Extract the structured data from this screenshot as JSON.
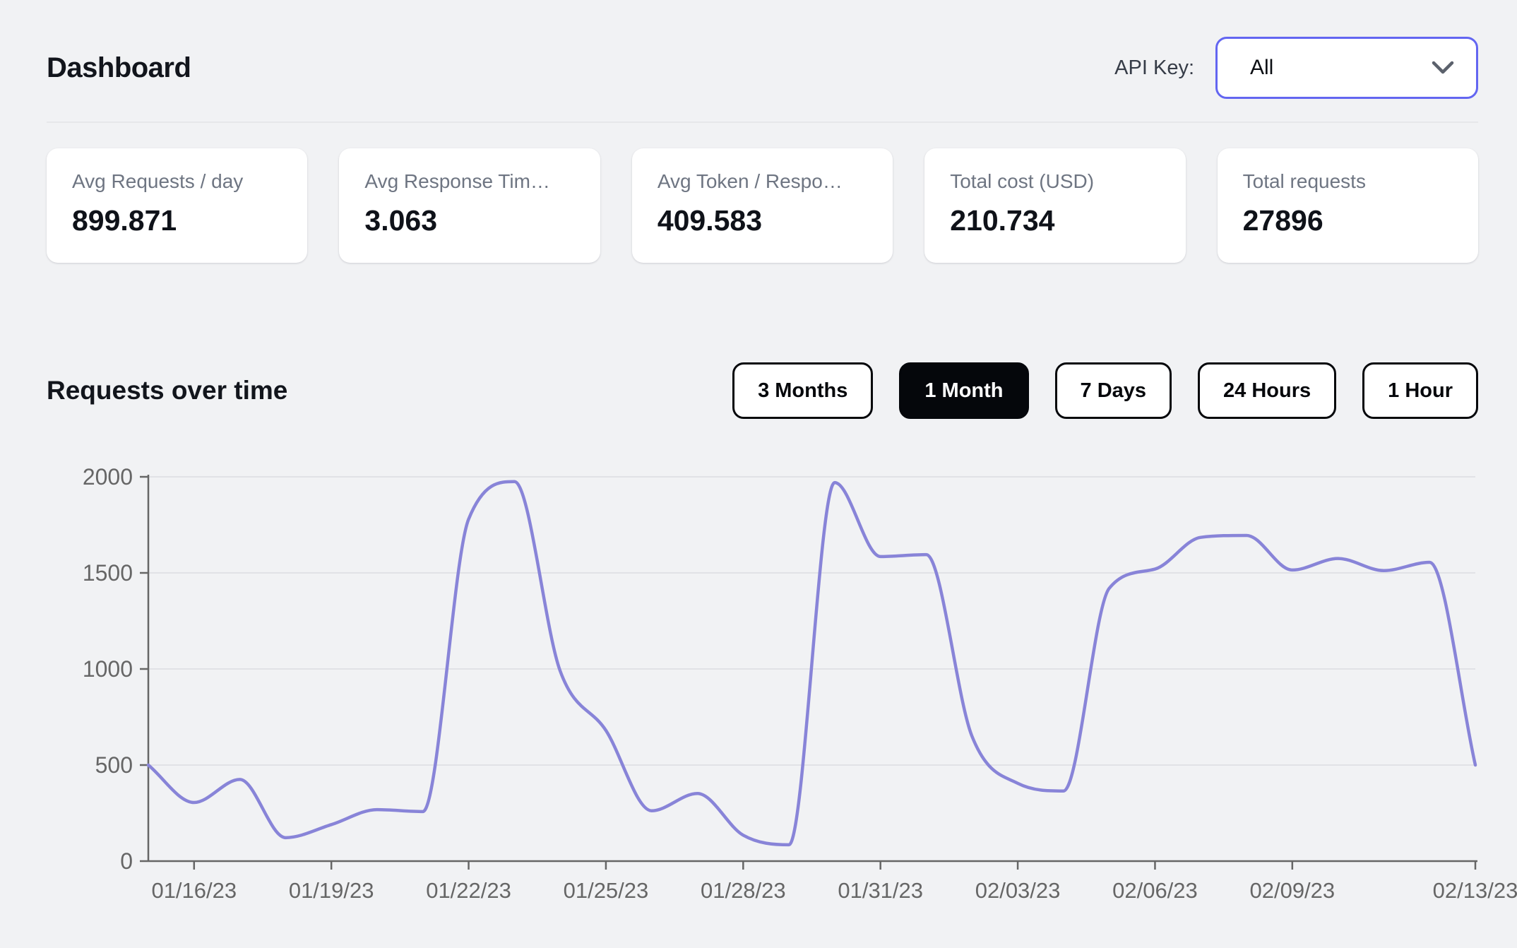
{
  "header": {
    "title": "Dashboard",
    "api_key_label": "API Key:",
    "api_key_value": "All"
  },
  "stats": [
    {
      "label": "Avg Requests / day",
      "value": "899.871"
    },
    {
      "label": "Avg Response Tim…",
      "value": "3.063"
    },
    {
      "label": "Avg Token / Respo…",
      "value": "409.583"
    },
    {
      "label": "Total cost (USD)",
      "value": "210.734"
    },
    {
      "label": "Total requests",
      "value": "27896"
    }
  ],
  "section": {
    "title": "Requests over time",
    "range_buttons": [
      {
        "label": "3 Months",
        "selected": false
      },
      {
        "label": "1 Month",
        "selected": true
      },
      {
        "label": "7 Days",
        "selected": false
      },
      {
        "label": "24 Hours",
        "selected": false
      },
      {
        "label": "1 Hour",
        "selected": false
      }
    ]
  },
  "colors": {
    "accent": "#6366f1",
    "line": "#8884d8",
    "axis": "#666666",
    "grid": "#e1e2e6",
    "selected_button_bg": "#05070b",
    "chevron": "#5b616c"
  },
  "chart_data": {
    "type": "line",
    "title": "Requests over time",
    "x": [
      "01/15/23",
      "01/16/23",
      "01/17/23",
      "01/18/23",
      "01/19/23",
      "01/20/23",
      "01/21/23",
      "01/22/23",
      "01/23/23",
      "01/24/23",
      "01/25/23",
      "01/26/23",
      "01/27/23",
      "01/28/23",
      "01/29/23",
      "01/30/23",
      "01/31/23",
      "02/01/23",
      "02/02/23",
      "02/03/23",
      "02/04/23",
      "02/05/23",
      "02/06/23",
      "02/07/23",
      "02/08/23",
      "02/09/23",
      "02/10/23",
      "02/11/23",
      "02/12/23",
      "02/13/23"
    ],
    "values": [
      500,
      305,
      425,
      122,
      190,
      268,
      258,
      1780,
      1975,
      990,
      680,
      262,
      352,
      135,
      85,
      1970,
      1585,
      1595,
      650,
      405,
      365,
      1420,
      1520,
      1685,
      1695,
      1515,
      1575,
      1512,
      1555,
      500
    ],
    "x_tick_labels": [
      "01/16/23",
      "01/19/23",
      "01/22/23",
      "01/25/23",
      "01/28/23",
      "01/31/23",
      "02/03/23",
      "02/06/23",
      "02/09/23",
      "02/13/23"
    ],
    "y_ticks": [
      0,
      500,
      1000,
      1500,
      2000
    ],
    "ylim": [
      0,
      2000
    ],
    "xlabel": "",
    "ylabel": "",
    "grid": "horizontal",
    "legend": "none",
    "line_color": "#8884d8",
    "curve": "monotone"
  }
}
